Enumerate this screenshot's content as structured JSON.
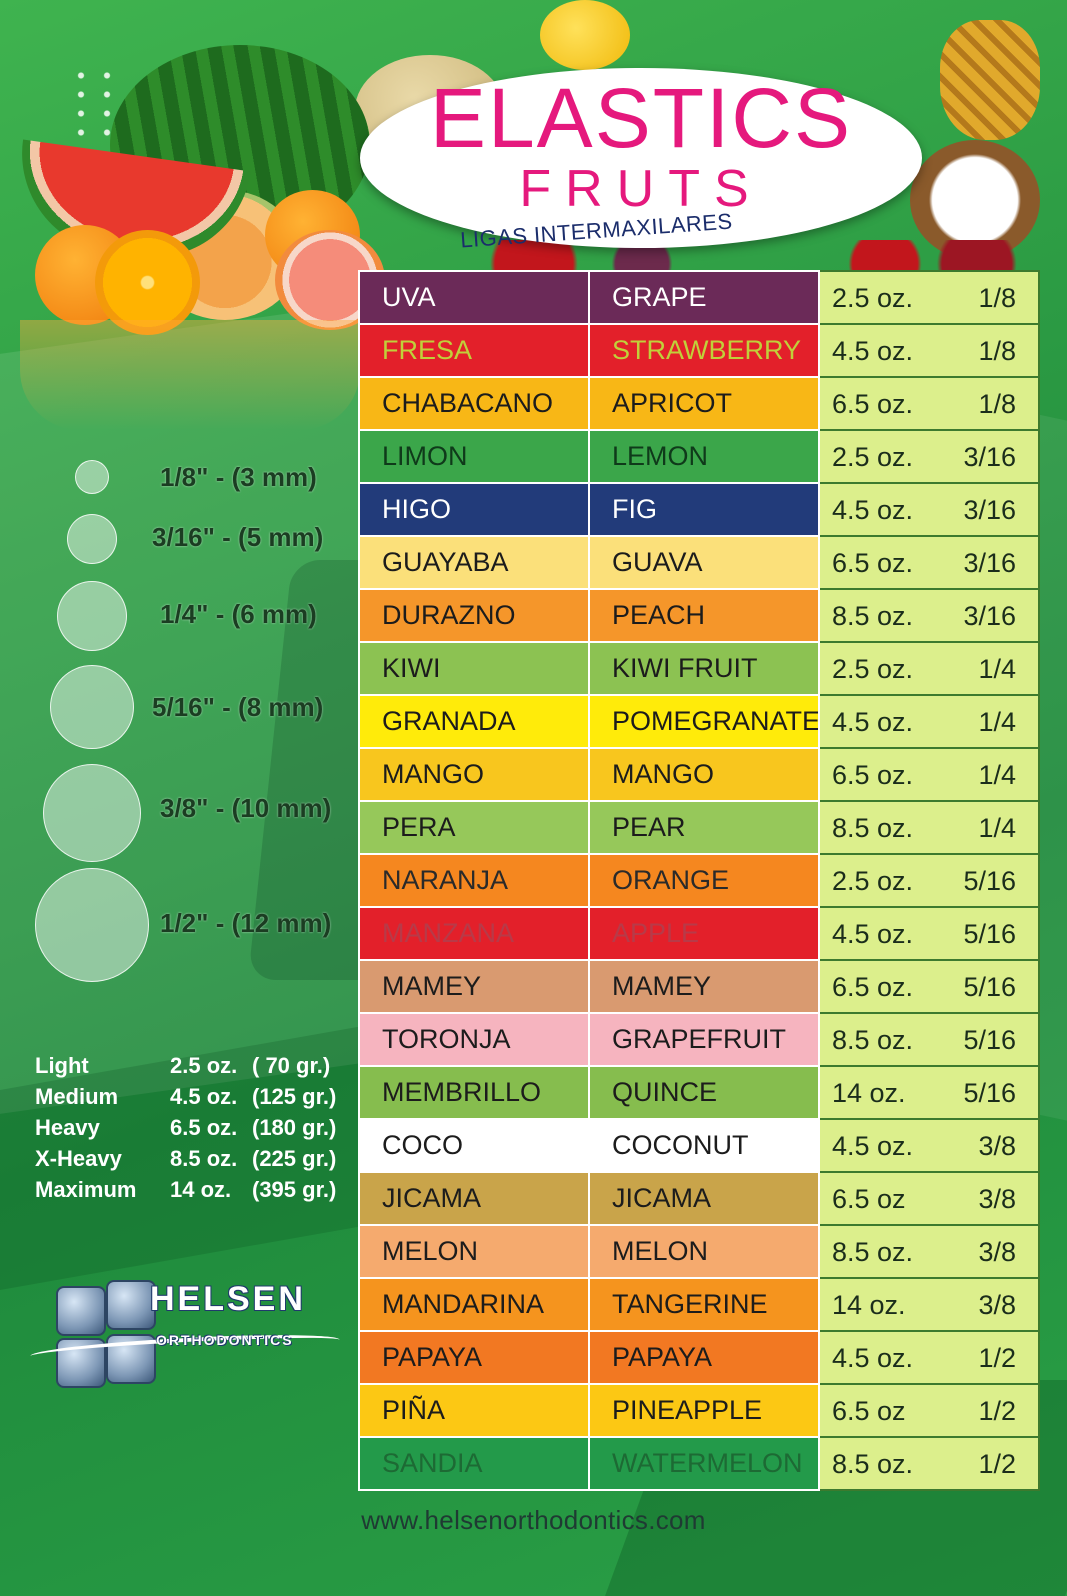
{
  "header": {
    "title": "ELASTICS",
    "subtitle": "FRUTS",
    "tagline": "LIGAS INTERMAXILARES"
  },
  "sizes": [
    {
      "label": "1/8\" - (3 mm)"
    },
    {
      "label": "3/16\" - (5 mm)"
    },
    {
      "label": "1/4\" - (6 mm)"
    },
    {
      "label": "5/16\" - (8 mm)"
    },
    {
      "label": "3/8\" - (10 mm)"
    },
    {
      "label": "1/2\" - (12 mm)"
    }
  ],
  "forces": [
    {
      "name": "Light",
      "oz": "2.5 oz.",
      "gr": "(  70 gr.)"
    },
    {
      "name": "Medium",
      "oz": "4.5 oz.",
      "gr": "(125 gr.)"
    },
    {
      "name": "Heavy",
      "oz": "6.5 oz.",
      "gr": "(180 gr.)"
    },
    {
      "name": "X-Heavy",
      "oz": "8.5 oz.",
      "gr": "(225 gr.)"
    },
    {
      "name": "Maximum",
      "oz": "14 oz.",
      "gr": "(395 gr.)"
    }
  ],
  "logo": {
    "name": "HELSEN",
    "sub": "ORTHODONTICS"
  },
  "rows": [
    {
      "es": "UVA",
      "en": "GRAPE",
      "oz": "2.5 oz.",
      "size": "1/8",
      "bg": "#6b2a58",
      "fg": "#ffffff"
    },
    {
      "es": "FRESA",
      "en": "STRAWBERRY",
      "oz": "4.5 oz.",
      "size": "1/8",
      "bg": "#e3202a",
      "fg": "#c0d03a"
    },
    {
      "es": "CHABACANO",
      "en": "APRICOT",
      "oz": "6.5 oz.",
      "size": "1/8",
      "bg": "#f8b716",
      "fg": "#1c1c1c"
    },
    {
      "es": "LIMON",
      "en": "LEMON",
      "oz": "2.5 oz.",
      "size": "3/16",
      "bg": "#3ba64a",
      "fg": "#0f3a1a"
    },
    {
      "es": "HIGO",
      "en": "FIG",
      "oz": "4.5 oz.",
      "size": "3/16",
      "bg": "#223b7a",
      "fg": "#ffffff"
    },
    {
      "es": "GUAYABA",
      "en": "GUAVA",
      "oz": "6.5 oz.",
      "size": "3/16",
      "bg": "#fbe07a",
      "fg": "#1c1c1c"
    },
    {
      "es": "DURAZNO",
      "en": "PEACH",
      "oz": "8.5 oz.",
      "size": "3/16",
      "bg": "#f5962a",
      "fg": "#1c1c1c"
    },
    {
      "es": "KIWI",
      "en": "KIWI FRUIT",
      "oz": "2.5 oz.",
      "size": "1/4",
      "bg": "#8cc252",
      "fg": "#1c1c1c"
    },
    {
      "es": "GRANADA",
      "en": "POMEGRANATE",
      "oz": "4.5 oz.",
      "size": "1/4",
      "bg": "#ffeb0a",
      "fg": "#1c1c1c"
    },
    {
      "es": "MANGO",
      "en": "MANGO",
      "oz": "6.5 oz.",
      "size": "1/4",
      "bg": "#f8c61e",
      "fg": "#1c1c1c"
    },
    {
      "es": "PERA",
      "en": "PEAR",
      "oz": "8.5 oz.",
      "size": "1/4",
      "bg": "#96c85a",
      "fg": "#1c1c1c"
    },
    {
      "es": "NARANJA",
      "en": "ORANGE",
      "oz": "2.5 oz.",
      "size": "5/16",
      "bg": "#f5871f",
      "fg": "#2a2a2a"
    },
    {
      "es": "MANZANA",
      "en": "APPLE",
      "oz": "4.5 oz.",
      "size": "5/16",
      "bg": "#e3202a",
      "fg": "#b83a48"
    },
    {
      "es": "MAMEY",
      "en": "MAMEY",
      "oz": "6.5 oz.",
      "size": "5/16",
      "bg": "#d99a70",
      "fg": "#1c1c1c"
    },
    {
      "es": "TORONJA",
      "en": "GRAPEFRUIT",
      "oz": "8.5 oz.",
      "size": "5/16",
      "bg": "#f6b4bf",
      "fg": "#1c1c1c"
    },
    {
      "es": "MEMBRILLO",
      "en": "QUINCE",
      "oz": "14 oz.",
      "size": "5/16",
      "bg": "#86bd4e",
      "fg": "#1c1c1c"
    },
    {
      "es": "COCO",
      "en": "COCONUT",
      "oz": "4.5 oz.",
      "size": "3/8",
      "bg": "#ffffff",
      "fg": "#1c1c1c"
    },
    {
      "es": "JICAMA",
      "en": "JICAMA",
      "oz": "6.5 oz",
      "size": "3/8",
      "bg": "#c9a44a",
      "fg": "#1c1c1c"
    },
    {
      "es": "MELON",
      "en": "MELON",
      "oz": "8.5 oz.",
      "size": "3/8",
      "bg": "#f5aa6e",
      "fg": "#1c1c1c"
    },
    {
      "es": "MANDARINA",
      "en": "TANGERINE",
      "oz": "14 oz.",
      "size": "3/8",
      "bg": "#f5941e",
      "fg": "#1c1c1c"
    },
    {
      "es": "PAPAYA",
      "en": "PAPAYA",
      "oz": "4.5 oz.",
      "size": "1/2",
      "bg": "#f27822",
      "fg": "#1c1c1c"
    },
    {
      "es": "PIÑA",
      "en": "PINEAPPLE",
      "oz": "6.5 oz",
      "size": "1/2",
      "bg": "#fcc814",
      "fg": "#1c1c1c"
    },
    {
      "es": "SANDIA",
      "en": "WATERMELON",
      "oz": "8.5 oz.",
      "size": "1/2",
      "bg": "#239a4a",
      "fg": "#1d6a34"
    }
  ],
  "website": "www.helsenorthodontics.com"
}
